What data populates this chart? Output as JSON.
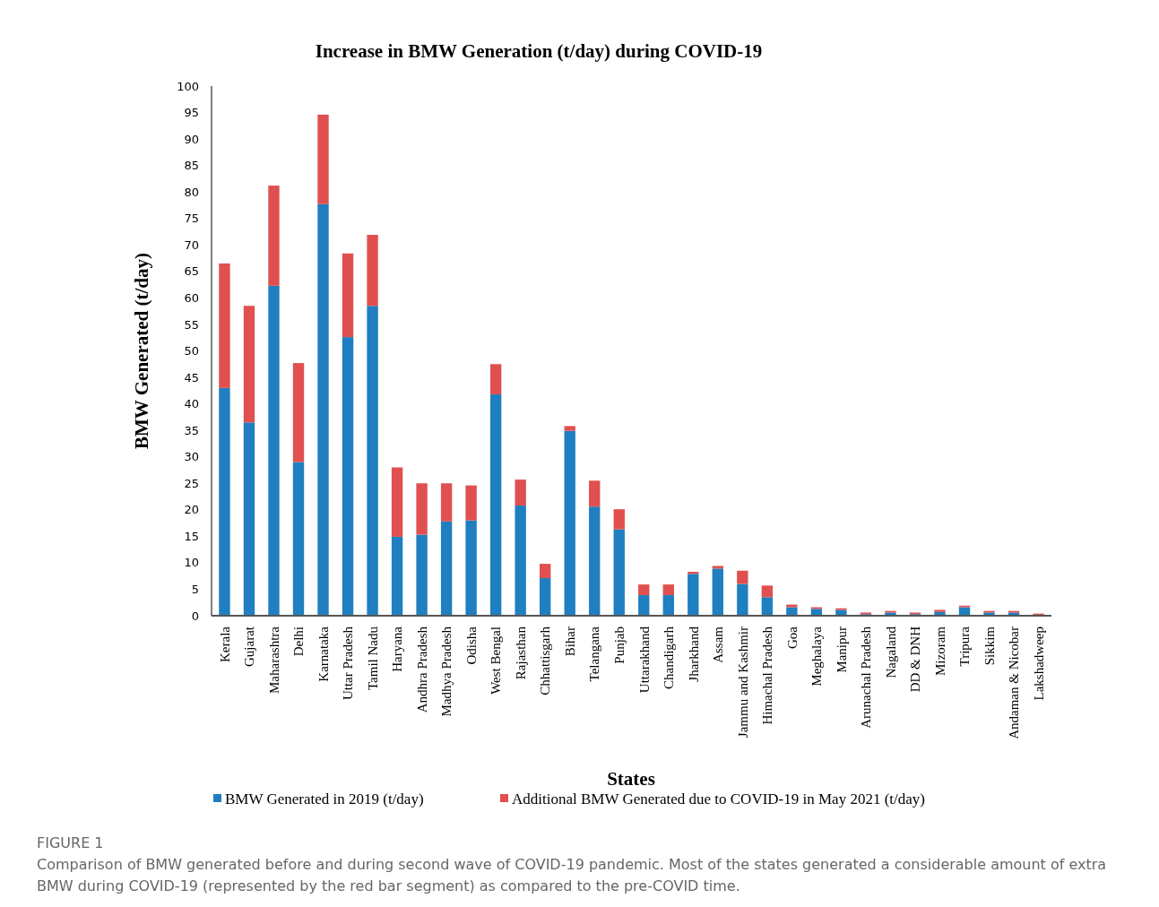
{
  "chart_data": {
    "type": "bar",
    "title": "Increase in BMW Generation (t/day) during COVID-19",
    "xlabel": "States",
    "ylabel": "BMW Generated (t/day)",
    "categories": [
      "Kerala",
      "Gujarat",
      "Maharashtra",
      "Delhi",
      "Karnataka",
      "Uttar Pradesh",
      "Tamil Nadu",
      "Haryana",
      "Andhra Pradesh",
      "Madhya Pradesh",
      "Odisha",
      "West Bengal",
      "Rajasthan",
      "Chhattisgarh",
      "Bihar",
      "Telangana",
      "Punjab",
      "Uttarakhand",
      "Chandigarh",
      "Jharkhand",
      "Assam",
      "Jammu and Kashmir",
      "Himachal Pradesh",
      "Goa",
      "Meghalaya",
      "Manipur",
      "Arunachal Pradesh",
      "Nagaland",
      "DD & DNH",
      "Mizoram",
      "Tripura",
      "Sikkim",
      "Andaman & Nicobar",
      "Lakshadweep"
    ],
    "stacked": true,
    "series": [
      {
        "name": "BMW Generated in 2019 (t/day)",
        "color": "#1f7fc0",
        "values": [
          43,
          36.5,
          62.3,
          29,
          77.7,
          52.6,
          58.5,
          14.9,
          15.3,
          17.8,
          18,
          41.8,
          20.8,
          7.1,
          34.9,
          20.6,
          16.3,
          3.9,
          3.9,
          7.9,
          8.9,
          6,
          3.5,
          1.6,
          1.3,
          1.1,
          0.3,
          0.6,
          0.3,
          0.7,
          1.6,
          0.6,
          0.6,
          0.1
        ]
      },
      {
        "name": "Additional BMW Generated due to COVID-19 in May 2021 (t/day)",
        "color": "#e05050",
        "values": [
          23.5,
          22,
          18.9,
          18.7,
          16.9,
          15.8,
          13.4,
          13.1,
          9.7,
          7.2,
          6.6,
          5.7,
          4.9,
          2.7,
          0.9,
          4.9,
          3.8,
          2,
          2,
          0.4,
          0.5,
          2.5,
          2.2,
          0.5,
          0.3,
          0.3,
          0.3,
          0.3,
          0.3,
          0.4,
          0.3,
          0.3,
          0.3,
          0.3
        ]
      }
    ],
    "ylim": [
      0,
      100
    ],
    "yticks": [
      0,
      5,
      10,
      15,
      20,
      25,
      30,
      35,
      40,
      45,
      50,
      55,
      60,
      65,
      70,
      75,
      80,
      85,
      90,
      95,
      100
    ],
    "legend": "bottom",
    "annotations": [
      "FIGURE 1",
      "Comparison of BMW generated before and during second wave of COVID-19 pandemic. Most of the states generated a considerable amount of extra BMW during COVID-19 (represented by the red bar segment) as compared to the pre-COVID time."
    ]
  }
}
